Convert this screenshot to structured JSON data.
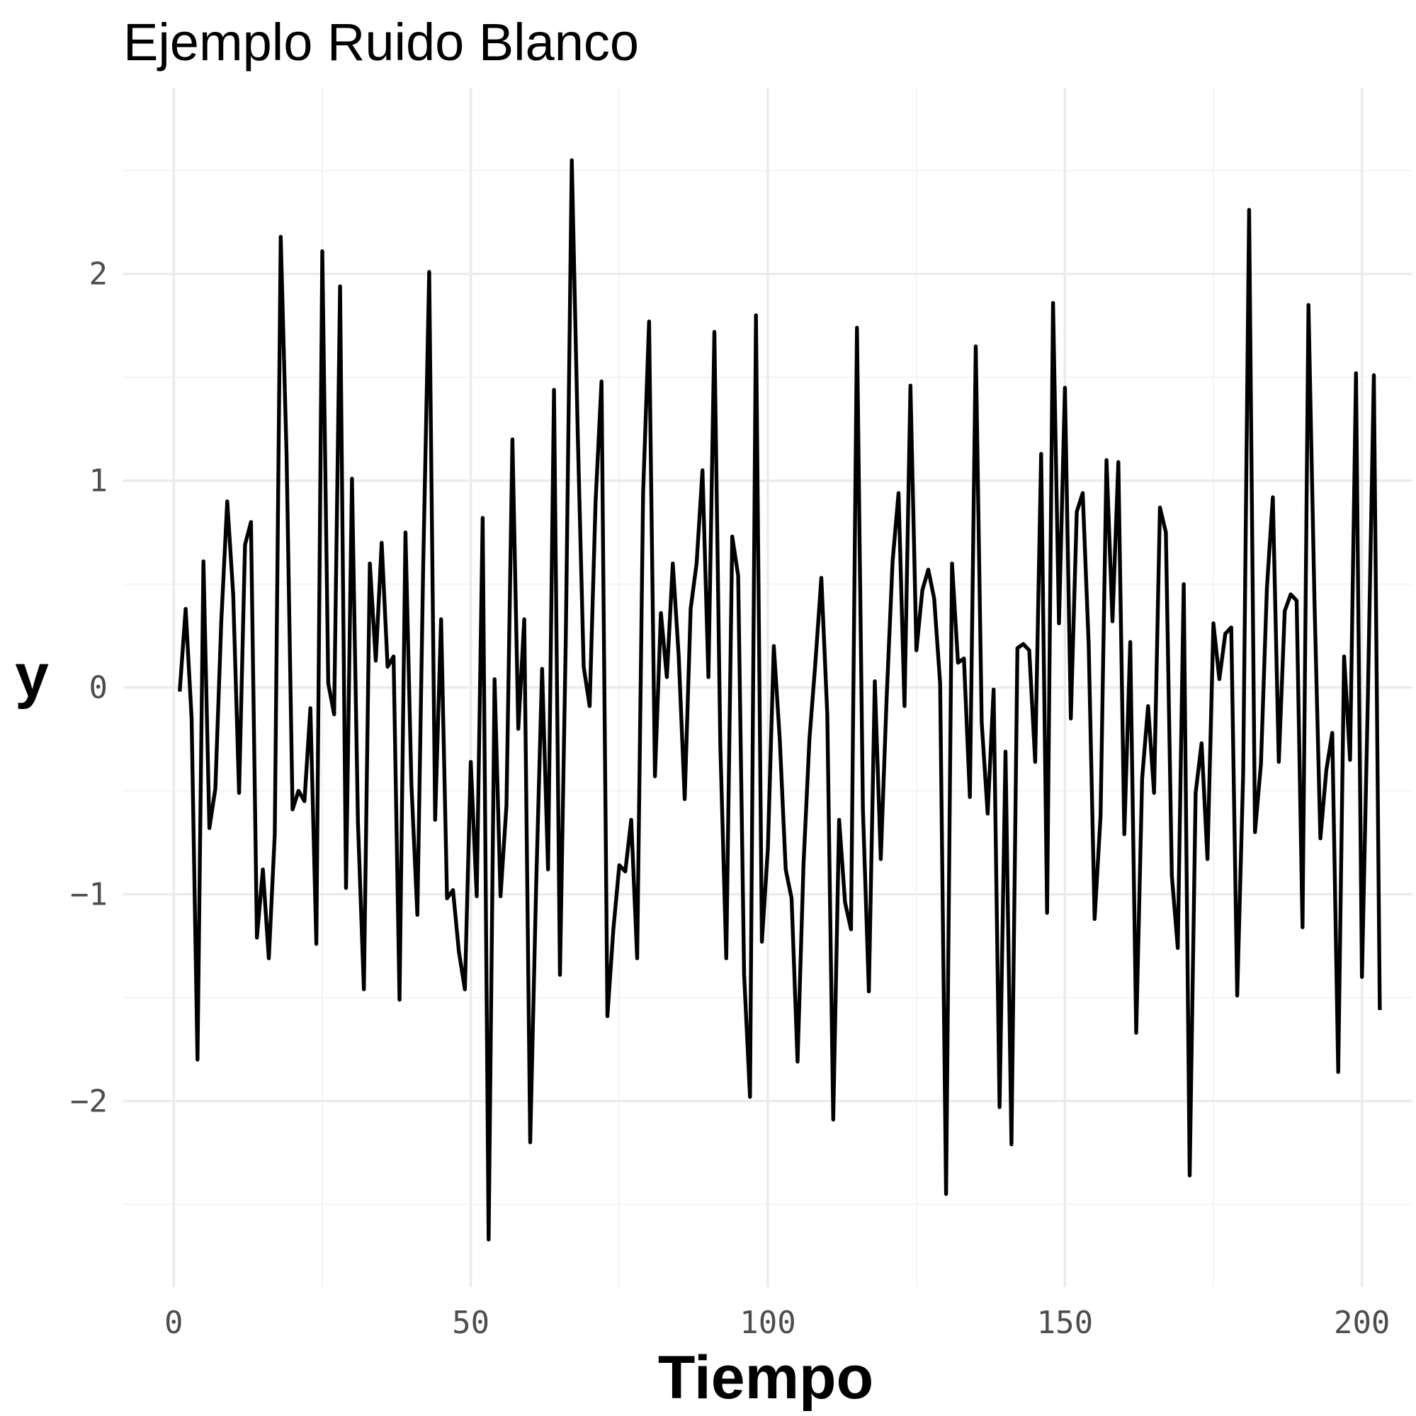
{
  "chart_data": {
    "type": "line",
    "title": "Ejemplo Ruido Blanco",
    "xlabel": "Tiempo",
    "ylabel": "y",
    "xlim": [
      -8.5,
      208.5
    ],
    "ylim": [
      -2.9,
      2.9
    ],
    "x_ticks": [
      0,
      50,
      100,
      150,
      200
    ],
    "x_tick_labels": [
      "0",
      "50",
      "100",
      "150",
      "200"
    ],
    "y_ticks": [
      -2,
      -1,
      0,
      1,
      2
    ],
    "y_tick_labels": [
      "−2",
      "−1",
      "0",
      "1",
      "2"
    ],
    "grid": true,
    "series": [
      {
        "color": "#000000",
        "x_start": 1,
        "x_step": 1,
        "values": [
          -0.02,
          0.38,
          -0.15,
          -1.8,
          0.61,
          -0.68,
          -0.49,
          0.32,
          0.9,
          0.45,
          -0.51,
          0.69,
          0.8,
          -1.21,
          -0.88,
          -1.31,
          -0.71,
          2.18,
          1.12,
          -0.59,
          -0.5,
          -0.55,
          -0.1,
          -1.24,
          2.11,
          0.02,
          -0.13,
          1.94,
          -0.97,
          1.01,
          -0.65,
          -1.46,
          0.6,
          0.13,
          0.7,
          0.1,
          0.15,
          -1.51,
          0.75,
          -0.47,
          -1.1,
          0.6,
          2.01,
          -0.64,
          0.33,
          -1.02,
          -0.98,
          -1.28,
          -1.46,
          -0.36,
          -1.01,
          0.82,
          -2.67,
          0.04,
          -1.01,
          -0.57,
          1.2,
          -0.2,
          0.33,
          -2.2,
          -0.96,
          0.09,
          -0.88,
          1.44,
          -1.39,
          0.25,
          2.55,
          1.23,
          0.1,
          -0.09,
          0.9,
          1.48,
          -1.59,
          -1.17,
          -0.86,
          -0.89,
          -0.64,
          -1.31,
          0.94,
          1.77,
          -0.43,
          0.36,
          0.05,
          0.6,
          0.15,
          -0.54,
          0.38,
          0.6,
          1.05,
          0.05,
          1.72,
          -0.28,
          -1.31,
          0.73,
          0.54,
          -1.39,
          -1.98,
          1.8,
          -1.23,
          -0.78,
          0.2,
          -0.25,
          -0.88,
          -1.02,
          -1.81,
          -0.86,
          -0.25,
          0.12,
          0.53,
          -0.13,
          -2.09,
          -0.64,
          -1.04,
          -1.17,
          1.74,
          -0.59,
          -1.47,
          0.03,
          -0.83,
          -0.05,
          0.61,
          0.94,
          -0.09,
          1.46,
          0.18,
          0.47,
          0.57,
          0.43,
          0.02,
          -2.45,
          0.6,
          0.12,
          0.14,
          -0.53,
          1.65,
          -0.17,
          -0.61,
          -0.01,
          -2.03,
          -0.31,
          -2.21,
          0.19,
          0.21,
          0.18,
          -0.36,
          1.13,
          -1.09,
          1.86,
          0.31,
          1.45,
          -0.15,
          0.85,
          0.94,
          0.21,
          -1.12,
          -0.62,
          1.1,
          0.32,
          1.09,
          -0.71,
          0.22,
          -1.67,
          -0.44,
          -0.09,
          -0.51,
          0.87,
          0.75,
          -0.91,
          -1.26,
          0.5,
          -2.36,
          -0.51,
          -0.27,
          -0.83,
          0.31,
          0.04,
          0.26,
          0.29,
          -1.49,
          -0.42,
          2.31,
          -0.7,
          -0.37,
          0.48,
          0.92,
          -0.36,
          0.37,
          0.45,
          0.42,
          -1.16,
          1.85,
          0.43,
          -0.73,
          -0.4,
          -0.22,
          -1.86,
          0.15,
          -0.35,
          1.52,
          -1.4,
          -0.04,
          1.51,
          -1.56
        ]
      }
    ]
  }
}
